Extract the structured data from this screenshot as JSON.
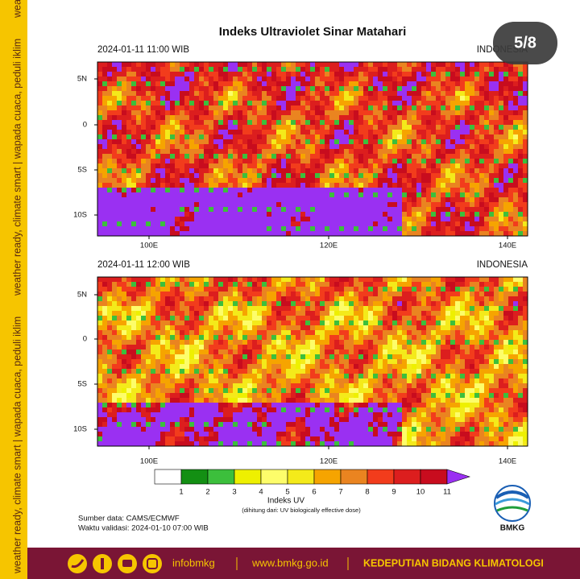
{
  "side_text": "weather ready, climate smart  |  wapada cuaca, peduli iklim",
  "badge": "5/8",
  "title": "Indeks Ultraviolet Sinar Matahari",
  "panels": [
    {
      "time": "2024-01-11  11:00 WIB",
      "region": "INDONESIA"
    },
    {
      "time": "2024-01-11  12:00 WIB",
      "region": "INDONESIA"
    }
  ],
  "lat_labels": [
    "5N",
    "0",
    "5S",
    "10S"
  ],
  "lon_labels": [
    "100E",
    "120E",
    "140E"
  ],
  "colorbar": {
    "labels": [
      "1",
      "2",
      "3",
      "4",
      "5",
      "6",
      "7",
      "8",
      "9",
      "10",
      "11"
    ],
    "colors": [
      "#ffffff",
      "#138f13",
      "#3cbf3c",
      "#eef000",
      "#fdfd6a",
      "#f4ea1a",
      "#f6a400",
      "#ea8420",
      "#f23c1c",
      "#dc1e1e",
      "#c80c1e",
      "#9a30f2"
    ],
    "title": "Indeks UV",
    "note": "(dihitung dari: UV biologically effective dose)"
  },
  "source": "Sumber data: CAMS/ECMWF",
  "valid": "Waktu validasi: 2024-01-10 07:00 WIB",
  "logo_text": "BMKG",
  "footer": {
    "handle": "infobmkg",
    "site": "www.bmkg.go.id",
    "org": "KEDEPUTIAN BIDANG KLIMATOLOGI"
  }
}
